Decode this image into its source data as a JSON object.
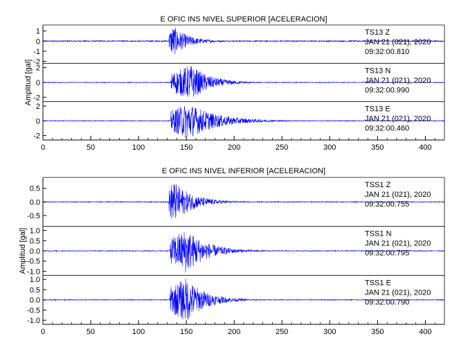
{
  "colors": {
    "trace": "#0000ff",
    "axis": "#000000",
    "background": "#ffffff"
  },
  "chart_data": [
    {
      "type": "line",
      "title": "E OFIC INS NIVEL SUPERIOR [ACELERACION]",
      "xlabel": "",
      "ylabel": "Amplitud [gal]",
      "xlim": [
        0,
        420
      ],
      "x_ticks": [
        "0",
        "50",
        "100",
        "150",
        "200",
        "250",
        "300",
        "350",
        "400"
      ],
      "x_tick_values": [
        0,
        50,
        100,
        150,
        200,
        250,
        300,
        350,
        400
      ],
      "grid": false,
      "series": [
        {
          "name": "TS13 Z",
          "station": "TS13   Z",
          "date": "JAN 21 (021), 2020",
          "time": "09:32:00.810",
          "ylim": [
            -2.2,
            1.6
          ],
          "y_ticks": [
            "1",
            "0",
            "-1",
            "-2"
          ],
          "y_tick_values": [
            1,
            0,
            -1,
            -2
          ],
          "onset_s": 132,
          "peak_time_s": 136,
          "peak_abs": 1.55,
          "noise": 0.06,
          "decay": 16,
          "tail_end_s": 210
        },
        {
          "name": "TS13 N",
          "station": "TS13   N",
          "date": "JAN 21 (021), 2020",
          "time": "09:32:00.990",
          "ylim": [
            -2.6,
            2.6
          ],
          "y_ticks": [
            "2",
            "0",
            "-2"
          ],
          "y_tick_values": [
            2,
            0,
            -2
          ],
          "onset_s": 134,
          "peak_time_s": 155,
          "peak_abs": 2.4,
          "noise": 0.05,
          "decay": 20,
          "tail_end_s": 230
        },
        {
          "name": "TS13 E",
          "station": "TS13   E",
          "date": "JAN 21 (021), 2020",
          "time": "09:32:00.460",
          "ylim": [
            -2.6,
            2.6
          ],
          "y_ticks": [
            "2",
            "0",
            "-2"
          ],
          "y_tick_values": [
            2,
            0,
            -2
          ],
          "onset_s": 134,
          "peak_time_s": 152,
          "peak_abs": 2.5,
          "noise": 0.05,
          "decay": 30,
          "tail_end_s": 280
        }
      ]
    },
    {
      "type": "line",
      "title": "E OFIC INS NIVEL INFERIOR [ACELERACION]",
      "xlabel": "",
      "ylabel": "Amplitud [gal]",
      "xlim": [
        0,
        420
      ],
      "x_ticks": [
        "0",
        "50",
        "100",
        "150",
        "200",
        "250",
        "300",
        "350",
        "400"
      ],
      "x_tick_values": [
        0,
        50,
        100,
        150,
        200,
        250,
        300,
        350,
        400
      ],
      "grid": false,
      "series": [
        {
          "name": "TSS1 Z",
          "station": "TSS1   Z",
          "date": "JAN 21 (021), 2020",
          "time": "09:32:00.755",
          "ylim": [
            -0.9,
            0.9
          ],
          "y_ticks": [
            "0.5",
            "0.0",
            "-0.5"
          ],
          "y_tick_values": [
            0.5,
            0.0,
            -0.5
          ],
          "onset_s": 132,
          "peak_time_s": 136,
          "peak_abs": 0.8,
          "noise": 0.015,
          "decay": 20,
          "tail_end_s": 240
        },
        {
          "name": "TSS1 N",
          "station": "TSS1   N",
          "date": "JAN 21 (021), 2020",
          "time": "09:32:00.795",
          "ylim": [
            -1.2,
            1.2
          ],
          "y_ticks": [
            "1.0",
            "0.5",
            "0.0",
            "-0.5",
            "-1.0"
          ],
          "y_tick_values": [
            1.0,
            0.5,
            0.0,
            -0.5,
            -1.0
          ],
          "onset_s": 133,
          "peak_time_s": 150,
          "peak_abs": 1.1,
          "noise": 0.02,
          "decay": 22,
          "tail_end_s": 250
        },
        {
          "name": "TSS1 E",
          "station": "TSS1   E",
          "date": "JAN 21 (021), 2020",
          "time": "09:32:00.790",
          "ylim": [
            -1.2,
            1.2
          ],
          "y_ticks": [
            "1.0",
            "0.5",
            "0.0",
            "-0.5",
            "-1.0"
          ],
          "y_tick_values": [
            1.0,
            0.5,
            0.0,
            -0.5,
            -1.0
          ],
          "onset_s": 133,
          "peak_time_s": 150,
          "peak_abs": 1.1,
          "noise": 0.02,
          "decay": 20,
          "tail_end_s": 250
        }
      ]
    }
  ]
}
